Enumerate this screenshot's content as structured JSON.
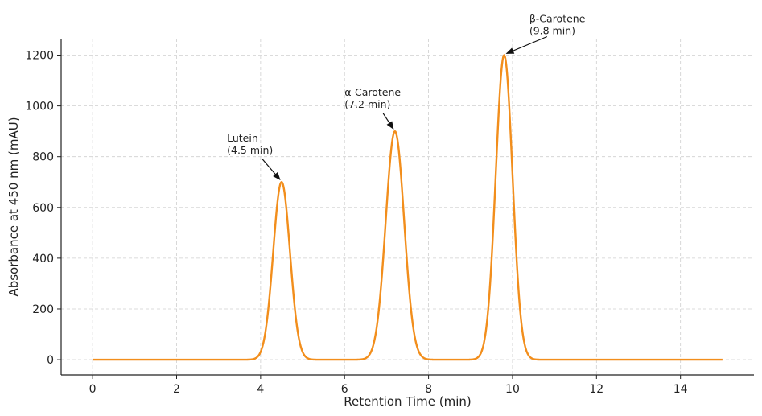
{
  "chart_data": {
    "type": "line",
    "title": "",
    "xlabel": "Retention Time (min)",
    "ylabel": "Absorbance at 450 nm (mAU)",
    "xlim": [
      -0.75,
      15.75
    ],
    "ylim": [
      -60,
      1265
    ],
    "x_ticks": [
      0,
      2,
      4,
      6,
      8,
      10,
      12,
      14
    ],
    "y_ticks": [
      0,
      200,
      400,
      600,
      800,
      1000,
      1200
    ],
    "grid": true,
    "line_color": "#f28e1c",
    "x_range": [
      0,
      15
    ],
    "peaks": [
      {
        "x": 4.5,
        "y": 700,
        "sigma": 0.2
      },
      {
        "x": 7.2,
        "y": 900,
        "sigma": 0.22
      },
      {
        "x": 9.8,
        "y": 1200,
        "sigma": 0.2
      }
    ],
    "annotations": [
      {
        "lines": [
          "Lutein",
          "(4.5 min)"
        ],
        "point": [
          4.5,
          700
        ],
        "text_at": [
          3.2,
          860
        ]
      },
      {
        "lines": [
          "α-Carotene",
          "(7.2 min)"
        ],
        "point": [
          7.2,
          900
        ],
        "text_at": [
          6.0,
          1040
        ]
      },
      {
        "lines": [
          "β-Carotene",
          "(9.8 min)"
        ],
        "point": [
          9.8,
          1200
        ],
        "text_at": [
          10.4,
          1330
        ]
      }
    ]
  }
}
